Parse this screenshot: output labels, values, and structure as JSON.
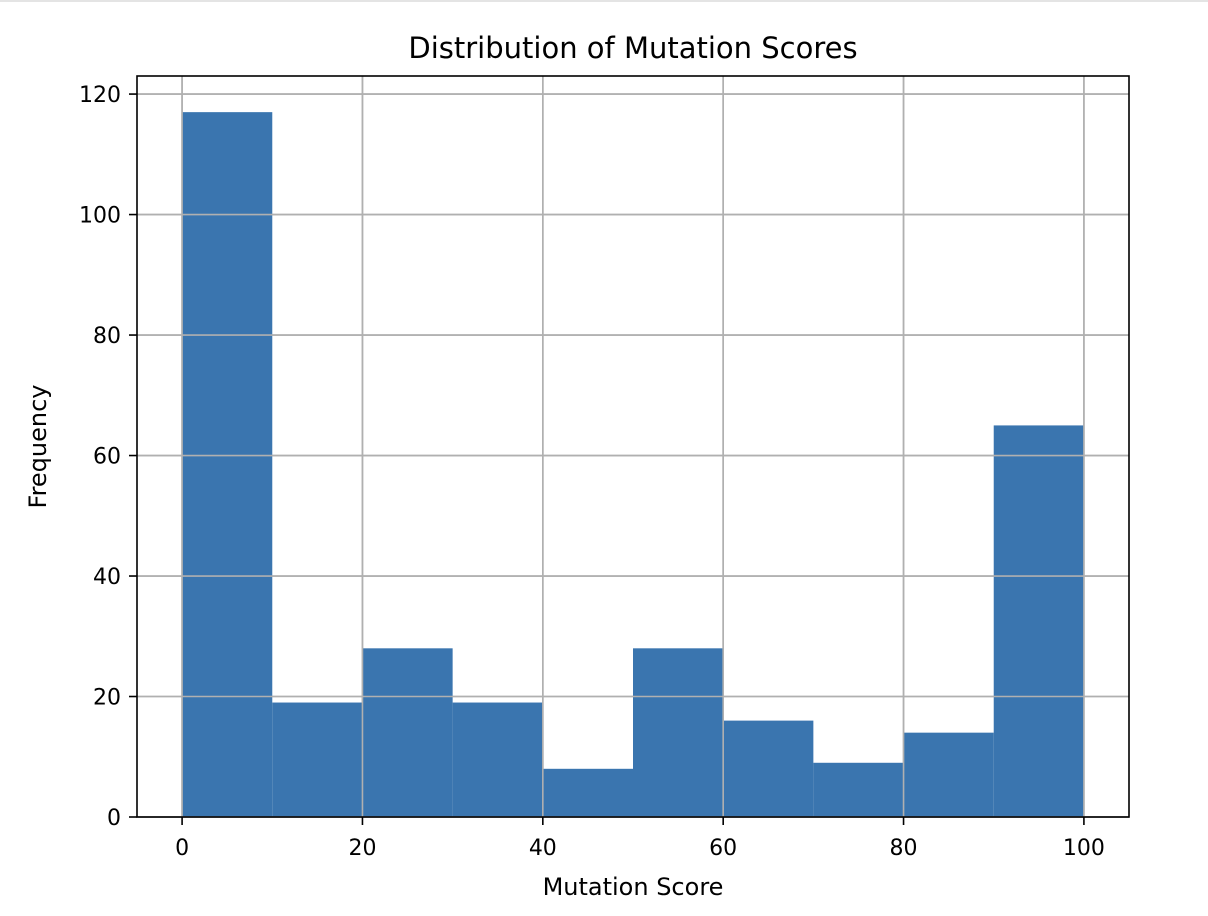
{
  "chart_data": {
    "type": "bar",
    "title": "Distribution of Mutation Scores",
    "xlabel": "Mutation Score",
    "ylabel": "Frequency",
    "bins": [
      {
        "start": 0,
        "end": 10,
        "count": 117
      },
      {
        "start": 10,
        "end": 20,
        "count": 19
      },
      {
        "start": 20,
        "end": 30,
        "count": 28
      },
      {
        "start": 30,
        "end": 40,
        "count": 19
      },
      {
        "start": 40,
        "end": 50,
        "count": 8
      },
      {
        "start": 50,
        "end": 60,
        "count": 28
      },
      {
        "start": 60,
        "end": 70,
        "count": 16
      },
      {
        "start": 70,
        "end": 80,
        "count": 9
      },
      {
        "start": 80,
        "end": 90,
        "count": 14
      },
      {
        "start": 90,
        "end": 100,
        "count": 65
      }
    ],
    "xlim": [
      -5,
      105
    ],
    "ylim": [
      0,
      123
    ],
    "xticks": [
      0,
      20,
      40,
      60,
      80,
      100
    ],
    "yticks": [
      0,
      20,
      40,
      60,
      80,
      100,
      120
    ],
    "grid": true,
    "bar_color": "#3a75af"
  }
}
